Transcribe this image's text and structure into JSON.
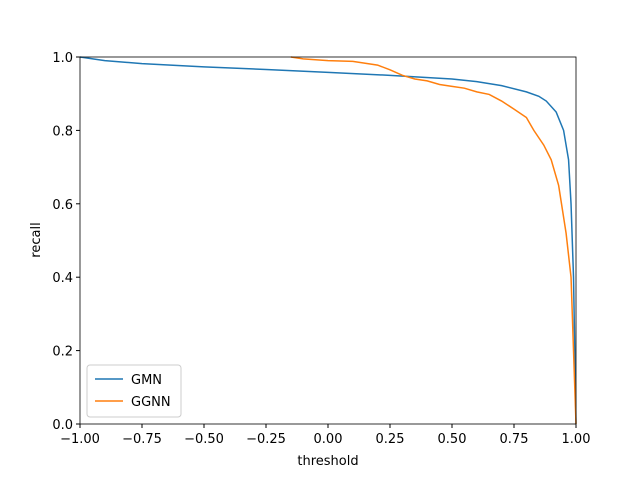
{
  "chart_data": {
    "type": "line",
    "x_label": "threshold",
    "y_label": "recall",
    "xlim": [
      -1,
      1
    ],
    "ylim": [
      0,
      1
    ],
    "xticks": [
      {
        "value": -1,
        "label": "−1.00"
      },
      {
        "value": -0.75,
        "label": "−0.75"
      },
      {
        "value": -0.5,
        "label": "−0.50"
      },
      {
        "value": -0.25,
        "label": "−0.25"
      },
      {
        "value": 0,
        "label": "0.00"
      },
      {
        "value": 0.25,
        "label": "0.25"
      },
      {
        "value": 0.5,
        "label": "0.50"
      },
      {
        "value": 0.75,
        "label": "0.75"
      },
      {
        "value": 1,
        "label": "1.00"
      }
    ],
    "yticks": [
      {
        "value": 0,
        "label": "0.0"
      },
      {
        "value": 0.2,
        "label": "0.2"
      },
      {
        "value": 0.4,
        "label": "0.4"
      },
      {
        "value": 0.6,
        "label": "0.6"
      },
      {
        "value": 0.8,
        "label": "0.8"
      },
      {
        "value": 1,
        "label": "1.0"
      }
    ],
    "legend": "lower left",
    "series": [
      {
        "name": "GMN",
        "color": "#1f77b4",
        "x": [
          -1,
          -0.9,
          -0.75,
          -0.5,
          -0.25,
          0,
          0.25,
          0.5,
          0.6,
          0.7,
          0.8,
          0.85,
          0.88,
          0.92,
          0.95,
          0.97,
          0.98,
          0.99,
          0.995,
          1
        ],
        "values": [
          1,
          0.99,
          0.982,
          0.973,
          0.966,
          0.958,
          0.95,
          0.94,
          0.933,
          0.922,
          0.905,
          0.893,
          0.88,
          0.85,
          0.8,
          0.72,
          0.6,
          0.4,
          0.2,
          0
        ]
      },
      {
        "name": "GGNN",
        "color": "#ff7f0e",
        "x": [
          -0.15,
          -0.1,
          0,
          0.1,
          0.2,
          0.25,
          0.3,
          0.35,
          0.4,
          0.45,
          0.5,
          0.55,
          0.6,
          0.65,
          0.7,
          0.75,
          0.8,
          0.83,
          0.87,
          0.9,
          0.93,
          0.96,
          0.98,
          0.99,
          1
        ],
        "values": [
          1,
          0.995,
          0.99,
          0.988,
          0.978,
          0.965,
          0.95,
          0.94,
          0.935,
          0.925,
          0.92,
          0.915,
          0.905,
          0.898,
          0.88,
          0.858,
          0.835,
          0.8,
          0.76,
          0.72,
          0.65,
          0.52,
          0.4,
          0.2,
          0
        ]
      }
    ]
  }
}
